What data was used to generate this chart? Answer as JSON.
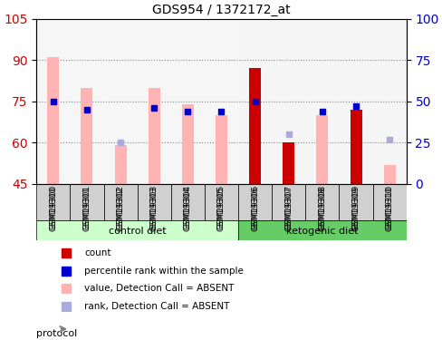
{
  "title": "GDS954 / 1372172_at",
  "samples": [
    "GSM19300",
    "GSM19301",
    "GSM19302",
    "GSM19303",
    "GSM19304",
    "GSM19305",
    "GSM19306",
    "GSM19307",
    "GSM19308",
    "GSM19309",
    "GSM19310"
  ],
  "groups": {
    "control diet": [
      "GSM19300",
      "GSM19301",
      "GSM19302",
      "GSM19303",
      "GSM19304",
      "GSM19305"
    ],
    "ketogenic diet": [
      "GSM19306",
      "GSM19307",
      "GSM19308",
      "GSM19309",
      "GSM19310"
    ]
  },
  "left_yaxis": {
    "label": "",
    "min": 45,
    "max": 105,
    "ticks": [
      45,
      60,
      75,
      90,
      105
    ]
  },
  "right_yaxis": {
    "label": "",
    "min": 0,
    "max": 100,
    "ticks": [
      0,
      25,
      50,
      75,
      100
    ]
  },
  "pink_bars": [
    91,
    80,
    59,
    80,
    74,
    70,
    null,
    null,
    70,
    null,
    52
  ],
  "red_bars": [
    null,
    null,
    null,
    null,
    null,
    null,
    87,
    60,
    null,
    72,
    null
  ],
  "blue_squares_left": [
    75,
    69,
    null,
    70,
    68,
    68,
    75,
    null,
    68,
    72,
    null
  ],
  "lavender_squares_left": [
    null,
    null,
    65,
    null,
    null,
    null,
    null,
    67,
    null,
    null,
    66
  ],
  "blue_sq_right_pct": [
    50,
    45,
    null,
    46,
    44,
    44,
    50,
    null,
    44,
    47,
    null
  ],
  "lav_sq_right_pct": [
    null,
    null,
    25,
    null,
    null,
    null,
    null,
    30,
    null,
    null,
    27
  ],
  "bar_bottom": 45,
  "pink_color": "#ffb3b3",
  "red_color": "#cc0000",
  "blue_color": "#0000cc",
  "lavender_color": "#aaaadd",
  "grid_color": "#888888",
  "bg_color": "#f5f5f5",
  "group_colors": {
    "control diet": "#ccffcc",
    "ketogenic diet": "#66cc66"
  },
  "label_color_left": "#cc0000",
  "label_color_right": "#0000cc"
}
